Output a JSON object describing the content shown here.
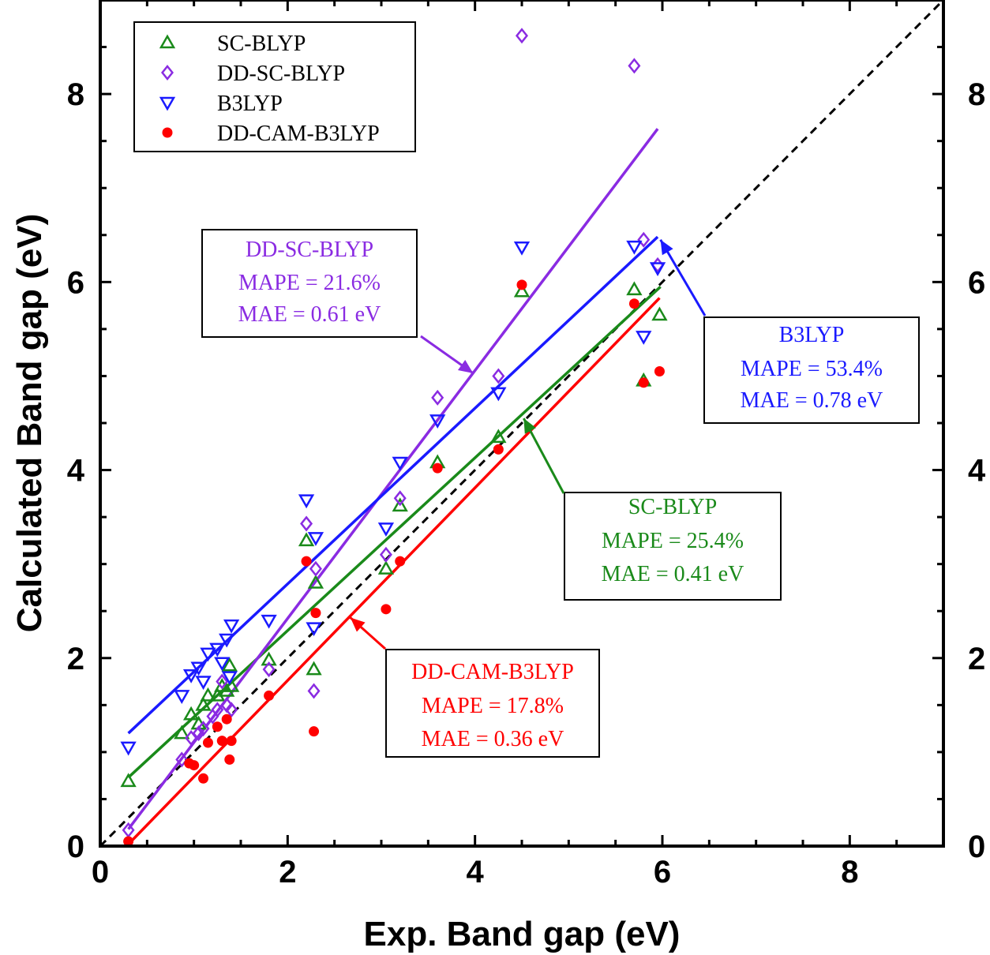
{
  "chart_data": {
    "type": "scatter",
    "xlabel": "Exp. Band gap (eV)",
    "ylabel": "Calculated Band gap (eV)",
    "xlim": [
      0,
      9
    ],
    "ylim": [
      0,
      9
    ],
    "x_ticks": [
      0,
      2,
      4,
      6,
      8
    ],
    "y_ticks": [
      0,
      2,
      4,
      6,
      8
    ],
    "x_tick_labels": [
      "0",
      "2",
      "4",
      "6",
      "8"
    ],
    "y_tick_labels": [
      "0",
      "2",
      "4",
      "6",
      "8"
    ],
    "reference_line": {
      "from": [
        0,
        0
      ],
      "to": [
        9,
        9
      ],
      "style": "dashed",
      "color": "#000000"
    },
    "legend_position": "top-left",
    "series": [
      {
        "name": "SC-BLYP",
        "marker": "triangle-up",
        "color": "#1a8a1a",
        "x": [
          0.3,
          0.87,
          0.97,
          1.05,
          1.1,
          1.15,
          1.25,
          1.3,
          1.35,
          1.38,
          1.4,
          1.8,
          2.2,
          2.28,
          2.3,
          3.05,
          3.2,
          3.6,
          4.25,
          4.5,
          5.7,
          5.8,
          5.97
        ],
        "y": [
          0.69,
          1.2,
          1.4,
          1.3,
          1.5,
          1.6,
          1.6,
          1.7,
          1.65,
          1.92,
          1.7,
          1.98,
          3.25,
          1.88,
          2.8,
          2.95,
          3.62,
          4.08,
          4.35,
          5.9,
          5.92,
          4.95,
          5.65
        ],
        "fit": {
          "x1": 0.3,
          "y1": 0.73,
          "x2": 5.98,
          "y2": 5.95
        }
      },
      {
        "name": "DD-SC-BLYP",
        "marker": "diamond",
        "color": "#8a2be2",
        "x": [
          0.3,
          0.87,
          0.97,
          1.05,
          1.1,
          1.2,
          1.25,
          1.3,
          1.35,
          1.4,
          1.8,
          2.2,
          2.28,
          2.3,
          3.05,
          3.2,
          3.6,
          4.25,
          4.5,
          5.7,
          5.8,
          5.95
        ],
        "y": [
          0.17,
          0.92,
          1.15,
          1.2,
          1.25,
          1.38,
          1.45,
          1.75,
          1.5,
          1.45,
          1.88,
          3.43,
          1.65,
          2.95,
          3.1,
          3.7,
          4.77,
          5.0,
          8.62,
          8.3,
          6.45,
          6.18
        ],
        "fit": {
          "x1": 0.3,
          "y1": 0.18,
          "x2": 5.95,
          "y2": 7.63
        }
      },
      {
        "name": "B3LYP",
        "marker": "triangle-down",
        "color": "#1a1aff",
        "x": [
          0.3,
          0.87,
          0.97,
          1.05,
          1.1,
          1.15,
          1.25,
          1.3,
          1.35,
          1.38,
          1.4,
          1.8,
          2.2,
          2.28,
          2.3,
          3.05,
          3.2,
          3.6,
          4.25,
          4.5,
          5.7,
          5.8,
          5.95
        ],
        "y": [
          1.05,
          1.6,
          1.82,
          1.9,
          1.75,
          2.05,
          2.1,
          1.95,
          2.2,
          1.8,
          2.35,
          2.4,
          3.68,
          2.32,
          3.28,
          3.38,
          4.08,
          4.53,
          4.82,
          6.37,
          6.38,
          5.42,
          6.15
        ],
        "fit": {
          "x1": 0.3,
          "y1": 1.2,
          "x2": 5.95,
          "y2": 6.48
        }
      },
      {
        "name": "DD-CAM-B3LYP",
        "marker": "circle",
        "color": "#ff0000",
        "x": [
          0.3,
          0.95,
          1.0,
          1.1,
          1.15,
          1.25,
          1.3,
          1.35,
          1.38,
          1.4,
          1.8,
          2.2,
          2.28,
          2.3,
          3.05,
          3.2,
          3.6,
          4.25,
          4.5,
          5.7,
          5.8,
          5.97
        ],
        "y": [
          0.05,
          0.88,
          0.86,
          0.72,
          1.1,
          1.27,
          1.12,
          1.35,
          0.92,
          1.12,
          1.6,
          3.03,
          1.22,
          2.48,
          2.52,
          3.03,
          4.02,
          4.22,
          5.97,
          5.77,
          4.93,
          5.05
        ],
        "fit": {
          "x1": 0.3,
          "y1": 0.02,
          "x2": 5.97,
          "y2": 5.83
        }
      }
    ],
    "annotations": [
      {
        "id": "dd-sc-blyp",
        "color": "#8a2be2",
        "title": "DD-SC-BLYP",
        "mape": "MAPE = 21.6%",
        "mae": "MAE = 0.61 eV",
        "arrow_to": [
          3.98,
          5.03
        ]
      },
      {
        "id": "b3lyp",
        "color": "#1a1aff",
        "title": "B3LYP",
        "mape": "MAPE = 53.4%",
        "mae": "MAE = 0.78 eV",
        "arrow_to": [
          5.98,
          6.45
        ]
      },
      {
        "id": "sc-blyp",
        "color": "#1a8a1a",
        "title": "SC-BLYP",
        "mape": "MAPE = 25.4%",
        "mae": "MAE = 0.41 eV",
        "arrow_to": [
          4.52,
          4.55
        ]
      },
      {
        "id": "dd-cam-b3lyp",
        "color": "#ff0000",
        "title": "DD-CAM-B3LYP",
        "mape": "MAPE = 17.8%",
        "mae": "MAE = 0.36 eV",
        "arrow_to": [
          2.67,
          2.43
        ]
      }
    ]
  }
}
